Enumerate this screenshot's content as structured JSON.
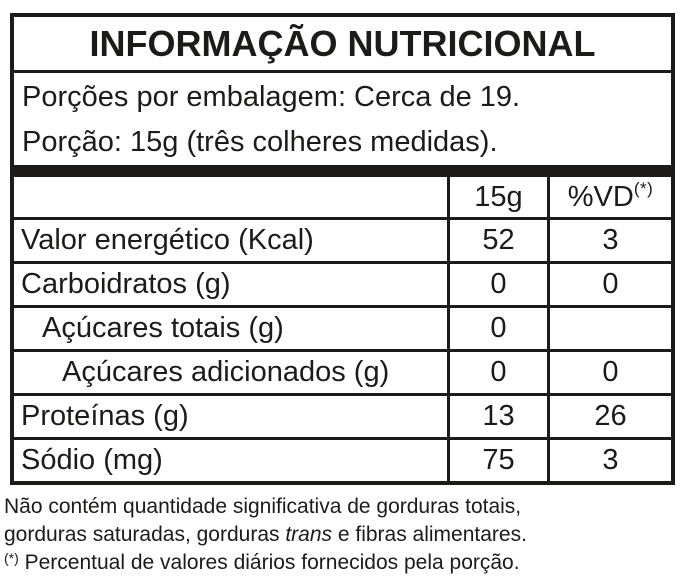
{
  "colors": {
    "ink": "#1d1b1a",
    "background": "#ffffff"
  },
  "table": {
    "title": "INFORMAÇÃO NUTRICIONAL",
    "serving": {
      "servings_per_package": "Porções por embalagem: Cerca de 19.",
      "portion": "Porção: 15g (três colheres medidas)."
    },
    "columns": {
      "amount_header": "15g",
      "dv_header": "%VD",
      "dv_header_sup": "(*)"
    },
    "rows": [
      {
        "label": "Valor energético (Kcal)",
        "amount": "52",
        "dv": "3"
      },
      {
        "label": "Carboidratos (g)",
        "amount": "0",
        "dv": "0"
      },
      {
        "label": "Açúcares totais (g)",
        "amount": "0",
        "dv": ""
      },
      {
        "label": "Açúcares adicionados (g)",
        "amount": "0",
        "dv": "0"
      },
      {
        "label": "Proteínas (g)",
        "amount": "13",
        "dv": "26"
      },
      {
        "label": "Sódio (mg)",
        "amount": "75",
        "dv": "3"
      }
    ]
  },
  "footnotes": {
    "line1": "Não contém quantidade significativa de gorduras totais,",
    "line2_pre": "gorduras saturadas, gorduras ",
    "line2_italic": "trans",
    "line2_post": " e fibras alimentares.",
    "line3_sup": "(*)",
    "line3_text": " Percentual de valores diários fornecidos pela porção."
  }
}
